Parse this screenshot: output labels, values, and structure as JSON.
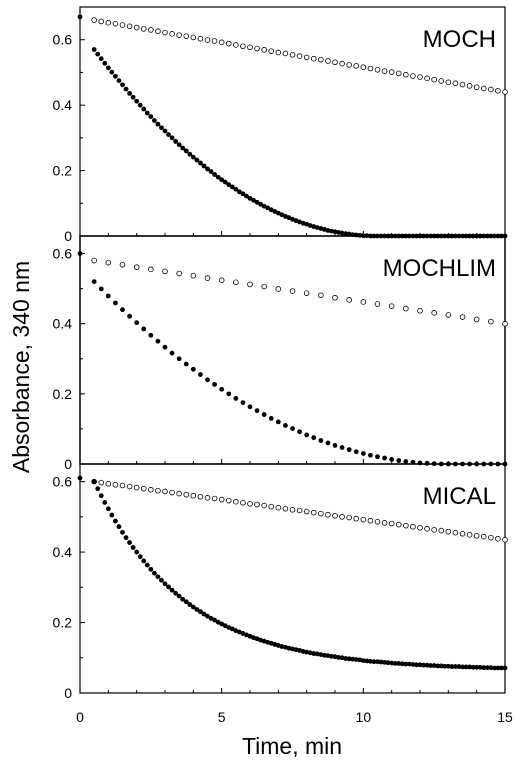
{
  "chart_data": {
    "type": "scatter",
    "ylabel": "Absorbance, 340 nm",
    "xlabel": "Time, min",
    "xlim": [
      0,
      15
    ],
    "x_ticks": [
      0,
      5,
      10,
      15
    ],
    "x_tick_labels": [
      "0",
      "5",
      "10",
      "15"
    ],
    "grid": false,
    "marker_colors": {
      "filled": "#000000",
      "open": "#ffffff",
      "outline": "#000000"
    },
    "panels": [
      {
        "label": "MOCH",
        "ylim": [
          0,
          0.7
        ],
        "y_ticks": [
          0,
          0.2,
          0.4,
          0.6
        ],
        "y_tick_labels": [
          "0",
          "0.2",
          "0.4",
          "0.6"
        ],
        "series": [
          {
            "marker": "open",
            "x_start": 0.5,
            "x_end": 15,
            "x_step": 0.25,
            "y_start": 0.66,
            "y_end": 0.44,
            "model": "linear"
          },
          {
            "marker": "filled",
            "x_start": 0.5,
            "x_end": 15,
            "x_step": 0.125,
            "y_start": 0.57,
            "y_end": 0.0,
            "model": "quadratic-to-zero",
            "x_zero": 10.5,
            "extra_points": [
              {
                "x": 0,
                "y": 0.67
              }
            ]
          }
        ]
      },
      {
        "label": "MOCHLIM",
        "ylim": [
          0,
          0.65
        ],
        "y_ticks": [
          0,
          0.2,
          0.4,
          0.6
        ],
        "y_tick_labels": [
          "0",
          "0.2",
          "0.4",
          "0.6"
        ],
        "series": [
          {
            "marker": "open",
            "x_start": 0.5,
            "x_end": 15,
            "x_step": 0.5,
            "y_start": 0.58,
            "y_end": 0.4,
            "model": "linear"
          },
          {
            "marker": "filled",
            "x_start": 0.5,
            "x_end": 15,
            "x_step": 0.25,
            "y_start": 0.52,
            "y_end": 0.0,
            "model": "quadratic-to-zero",
            "x_zero": 13.0,
            "extra_points": [
              {
                "x": 0,
                "y": 0.6
              }
            ]
          }
        ]
      },
      {
        "label": "MICAL",
        "ylim": [
          0,
          0.65
        ],
        "y_ticks": [
          0,
          0.2,
          0.4,
          0.6
        ],
        "y_tick_labels": [
          "0",
          "0.2",
          "0.4",
          "0.6"
        ],
        "series": [
          {
            "marker": "open",
            "x_start": 0.5,
            "x_end": 15,
            "x_step": 0.25,
            "y_start": 0.6,
            "y_end": 0.435,
            "model": "linear"
          },
          {
            "marker": "filled",
            "x_start": 0.5,
            "x_end": 15,
            "x_step": 0.125,
            "y_start": 0.6,
            "y_end": 0.065,
            "model": "exponential",
            "tau": 3.2,
            "extra_points": [
              {
                "x": 0,
                "y": 0.61
              }
            ]
          }
        ]
      }
    ]
  }
}
